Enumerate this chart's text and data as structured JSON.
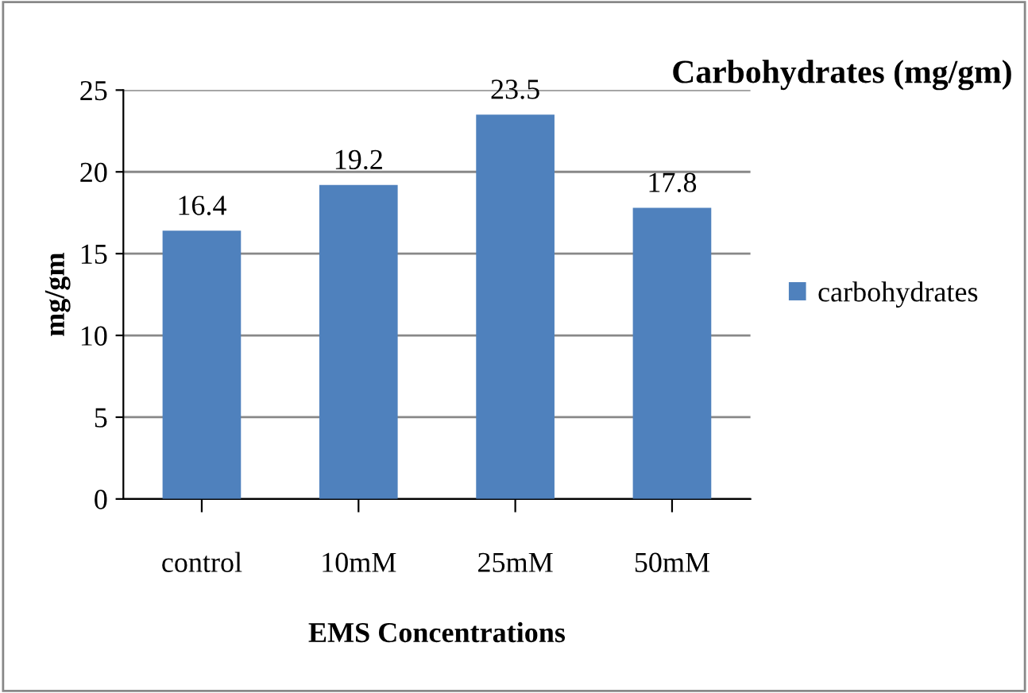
{
  "chart_data": {
    "type": "bar",
    "title": "Carbohydrates (mg/gm)",
    "xlabel": "EMS Concentrations",
    "ylabel": "mg/gm",
    "categories": [
      "control",
      "10mM",
      "25mM",
      "50mM"
    ],
    "series": [
      {
        "name": "carbohydrates",
        "color": "#4f81bd",
        "values": [
          16.4,
          19.2,
          23.5,
          17.8
        ]
      }
    ],
    "ylim": [
      0,
      25
    ],
    "yticks": [
      0,
      5,
      10,
      15,
      20,
      25
    ],
    "grid": "y",
    "legend": "right",
    "data_labels": true
  }
}
